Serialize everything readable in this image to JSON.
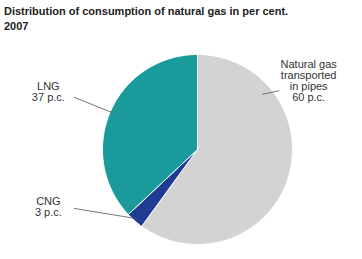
{
  "chart_data": {
    "type": "pie",
    "title": "Distribution of consumption of natural gas in per cent.",
    "subtitle": "2007",
    "categories": [
      "Natural gas transported in pipes",
      "CNG",
      "LNG"
    ],
    "values": [
      60,
      3,
      37
    ],
    "value_labels": [
      "60 p.c.",
      "3 p.c.",
      "37 p.c."
    ],
    "colors": [
      "#d3d3d3",
      "#1f3b92",
      "#1a9a9a"
    ],
    "data_labels": true
  }
}
